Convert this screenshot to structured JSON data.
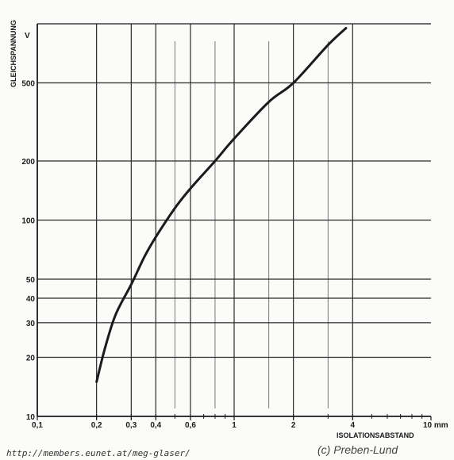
{
  "chart_data": {
    "type": "line",
    "ylabel": "GLEICHSPANNUNG",
    "yunit": "V",
    "xlabel": "ISOLATIONSABSTAND",
    "xunit": "mm",
    "x_scale": "log",
    "y_scale": "log",
    "xlim": [
      0.1,
      10
    ],
    "ylim": [
      10,
      1000
    ],
    "grid": true,
    "x_ticks": [
      {
        "v": 0.1,
        "label": "0,1"
      },
      {
        "v": 0.2,
        "label": "0,2"
      },
      {
        "v": 0.3,
        "label": "0,3"
      },
      {
        "v": 0.4,
        "label": "0,4"
      },
      {
        "v": 0.6,
        "label": "0,6"
      },
      {
        "v": 1,
        "label": "1"
      },
      {
        "v": 2,
        "label": "2"
      },
      {
        "v": 4,
        "label": "4"
      },
      {
        "v": 10,
        "label": "10 mm"
      }
    ],
    "y_ticks": [
      {
        "v": 10,
        "label": "10"
      },
      {
        "v": 20,
        "label": "20"
      },
      {
        "v": 30,
        "label": "30"
      },
      {
        "v": 40,
        "label": "40"
      },
      {
        "v": 50,
        "label": "50"
      },
      {
        "v": 100,
        "label": "100"
      },
      {
        "v": 200,
        "label": "200"
      },
      {
        "v": 500,
        "label": "500"
      }
    ],
    "x_grid_major": [
      0.2,
      0.3,
      0.4,
      0.6,
      1,
      2,
      4
    ],
    "x_grid_minor": [
      0.5,
      0.8,
      1.5,
      3
    ],
    "y_grid": [
      20,
      30,
      40,
      50,
      100,
      200,
      500
    ],
    "series": [
      {
        "color": "#1b1b1b",
        "x": [
          0.2,
          0.22,
          0.25,
          0.3,
          0.35,
          0.4,
          0.5,
          0.6,
          0.8,
          1.0,
          1.5,
          2.0,
          3.0,
          3.7
        ],
        "y": [
          15,
          22,
          33,
          47,
          65,
          82,
          115,
          145,
          200,
          260,
          400,
          500,
          780,
          950
        ]
      }
    ]
  },
  "footer": {
    "url": "http://members.eunet.at/meg-glaser/",
    "copyright": "(c) Preben-Lund"
  }
}
